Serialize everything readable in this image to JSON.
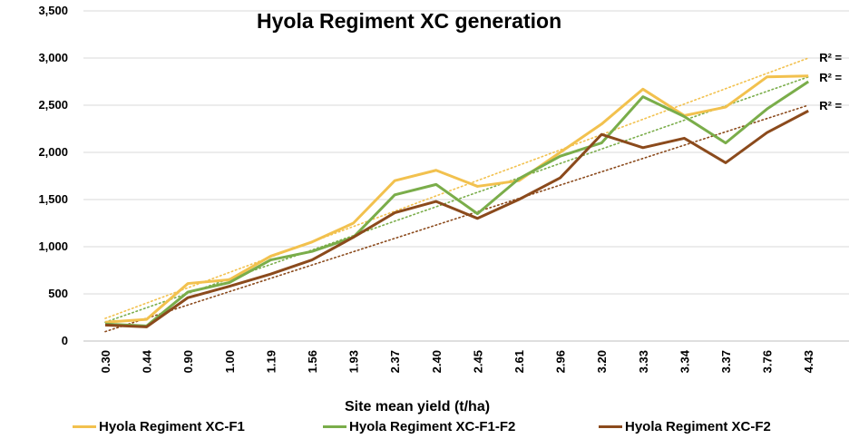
{
  "chart_data": {
    "type": "line",
    "title": "Hyola Regiment XC generation",
    "xlabel": "Site mean yield (t/ha)",
    "ylabel": "",
    "ylim": [
      0,
      3500
    ],
    "yticks": [
      "0",
      "500",
      "1,000",
      "1,500",
      "2,000",
      "2,500",
      "3,000",
      "3,500"
    ],
    "ytick_values": [
      0,
      500,
      1000,
      1500,
      2000,
      2500,
      3000,
      3500
    ],
    "categories": [
      "0.30",
      "0.44",
      "0.90",
      "1.00",
      "1.19",
      "1.56",
      "1.93",
      "2.37",
      "2.40",
      "2.45",
      "2.61",
      "2.96",
      "3.20",
      "3.33",
      "3.34",
      "3.37",
      "3.76",
      "4.43"
    ],
    "grid": true,
    "legend_position": "bottom",
    "series": [
      {
        "name": "Hyola Regiment XC-F1",
        "color": "#f2c14e",
        "values": [
          200,
          230,
          610,
          650,
          900,
          1050,
          1250,
          1700,
          1810,
          1640,
          1700,
          2000,
          2300,
          2670,
          2390,
          2480,
          2800,
          2810
        ],
        "trend": {
          "start": 240,
          "end": 3000,
          "r2_label": "R² ="
        }
      },
      {
        "name": "Hyola Regiment XC-F1-F2",
        "color": "#7aad4a",
        "values": [
          180,
          160,
          520,
          620,
          860,
          950,
          1100,
          1550,
          1660,
          1350,
          1720,
          1960,
          2100,
          2590,
          2380,
          2100,
          2460,
          2750
        ],
        "trend": {
          "start": 200,
          "end": 2800,
          "r2_label": "R² ="
        }
      },
      {
        "name": "Hyola Regiment XC-F2",
        "color": "#8b4a1c",
        "values": [
          170,
          150,
          460,
          580,
          710,
          860,
          1100,
          1360,
          1480,
          1300,
          1500,
          1730,
          2190,
          2050,
          2150,
          1890,
          2210,
          2440
        ],
        "trend": {
          "start": 100,
          "end": 2500,
          "r2_label": "R² ="
        }
      }
    ]
  }
}
